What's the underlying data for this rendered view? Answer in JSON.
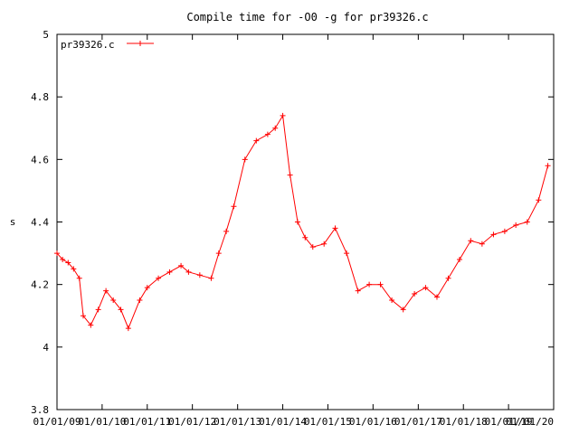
{
  "chart_data": {
    "type": "line",
    "title": "Compile time for -O0 -g for pr39326.c",
    "xlabel": "",
    "ylabel": "s",
    "ylim": [
      3.8,
      5.0
    ],
    "yticks": [
      "3.8",
      "4",
      "4.2",
      "4.4",
      "4.6",
      "4.8",
      "5"
    ],
    "xticks": [
      "01/01/09",
      "01/01/10",
      "01/01/11",
      "01/01/12",
      "01/01/13",
      "01/01/14",
      "01/01/15",
      "01/01/16",
      "01/01/17",
      "01/01/18",
      "01/01/19",
      "01/01/20"
    ],
    "grid": false,
    "legend": "top-left",
    "marker": "plus",
    "series": [
      {
        "name": "pr39326.c",
        "color": "#ff0000",
        "points": [
          [
            "2009-01-01",
            4.3
          ],
          [
            "2009-02-15",
            4.28
          ],
          [
            "2009-04-01",
            4.27
          ],
          [
            "2009-05-15",
            4.25
          ],
          [
            "2009-07-01",
            4.22
          ],
          [
            "2009-08-01",
            4.1
          ],
          [
            "2009-10-01",
            4.07
          ],
          [
            "2009-12-01",
            4.12
          ],
          [
            "2010-02-01",
            4.18
          ],
          [
            "2010-04-01",
            4.15
          ],
          [
            "2010-06-01",
            4.12
          ],
          [
            "2010-08-01",
            4.06
          ],
          [
            "2010-11-01",
            4.15
          ],
          [
            "2011-01-01",
            4.19
          ],
          [
            "2011-04-01",
            4.22
          ],
          [
            "2011-07-01",
            4.24
          ],
          [
            "2011-10-01",
            4.26
          ],
          [
            "2011-12-01",
            4.24
          ],
          [
            "2012-03-01",
            4.23
          ],
          [
            "2012-06-01",
            4.22
          ],
          [
            "2012-08-01",
            4.3
          ],
          [
            "2012-10-01",
            4.37
          ],
          [
            "2012-12-01",
            4.45
          ],
          [
            "2013-03-01",
            4.6
          ],
          [
            "2013-06-01",
            4.66
          ],
          [
            "2013-09-01",
            4.68
          ],
          [
            "2013-11-01",
            4.7
          ],
          [
            "2014-01-01",
            4.74
          ],
          [
            "2014-03-01",
            4.55
          ],
          [
            "2014-05-01",
            4.4
          ],
          [
            "2014-07-01",
            4.35
          ],
          [
            "2014-09-01",
            4.32
          ],
          [
            "2014-12-01",
            4.33
          ],
          [
            "2015-03-01",
            4.38
          ],
          [
            "2015-06-01",
            4.3
          ],
          [
            "2015-09-01",
            4.18
          ],
          [
            "2015-12-01",
            4.2
          ],
          [
            "2016-03-01",
            4.2
          ],
          [
            "2016-06-01",
            4.15
          ],
          [
            "2016-09-01",
            4.12
          ],
          [
            "2016-12-01",
            4.17
          ],
          [
            "2017-03-01",
            4.19
          ],
          [
            "2017-06-01",
            4.16
          ],
          [
            "2017-09-01",
            4.22
          ],
          [
            "2017-12-01",
            4.28
          ],
          [
            "2018-03-01",
            4.34
          ],
          [
            "2018-06-01",
            4.33
          ],
          [
            "2018-09-01",
            4.36
          ],
          [
            "2018-12-01",
            4.37
          ],
          [
            "2019-03-01",
            4.39
          ],
          [
            "2019-06-01",
            4.4
          ],
          [
            "2019-09-01",
            4.47
          ],
          [
            "2019-11-15",
            4.58
          ]
        ]
      }
    ]
  }
}
